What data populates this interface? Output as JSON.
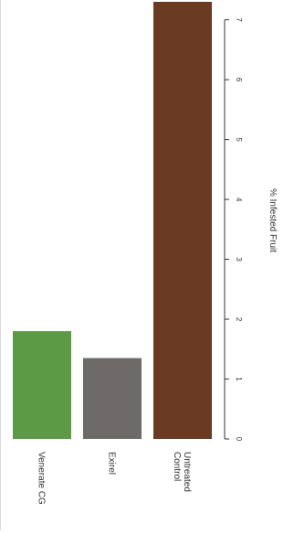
{
  "chart_data": {
    "type": "bar",
    "orientation": "rotated",
    "categories": [
      [
        "Venerate CG"
      ],
      [
        "Exirel"
      ],
      [
        "Untreated",
        "Control"
      ]
    ],
    "values": [
      1.8,
      1.35,
      7.3
    ],
    "colors": [
      "#5c9a45",
      "#6e6a69",
      "#6a3a22"
    ],
    "xlabel": "",
    "ylabel": "% Infested Fruit",
    "ylim": [
      0,
      7.3
    ],
    "yticks": [
      0,
      1,
      2,
      3,
      4,
      5,
      6,
      7
    ],
    "grid": false,
    "legend": "none"
  }
}
